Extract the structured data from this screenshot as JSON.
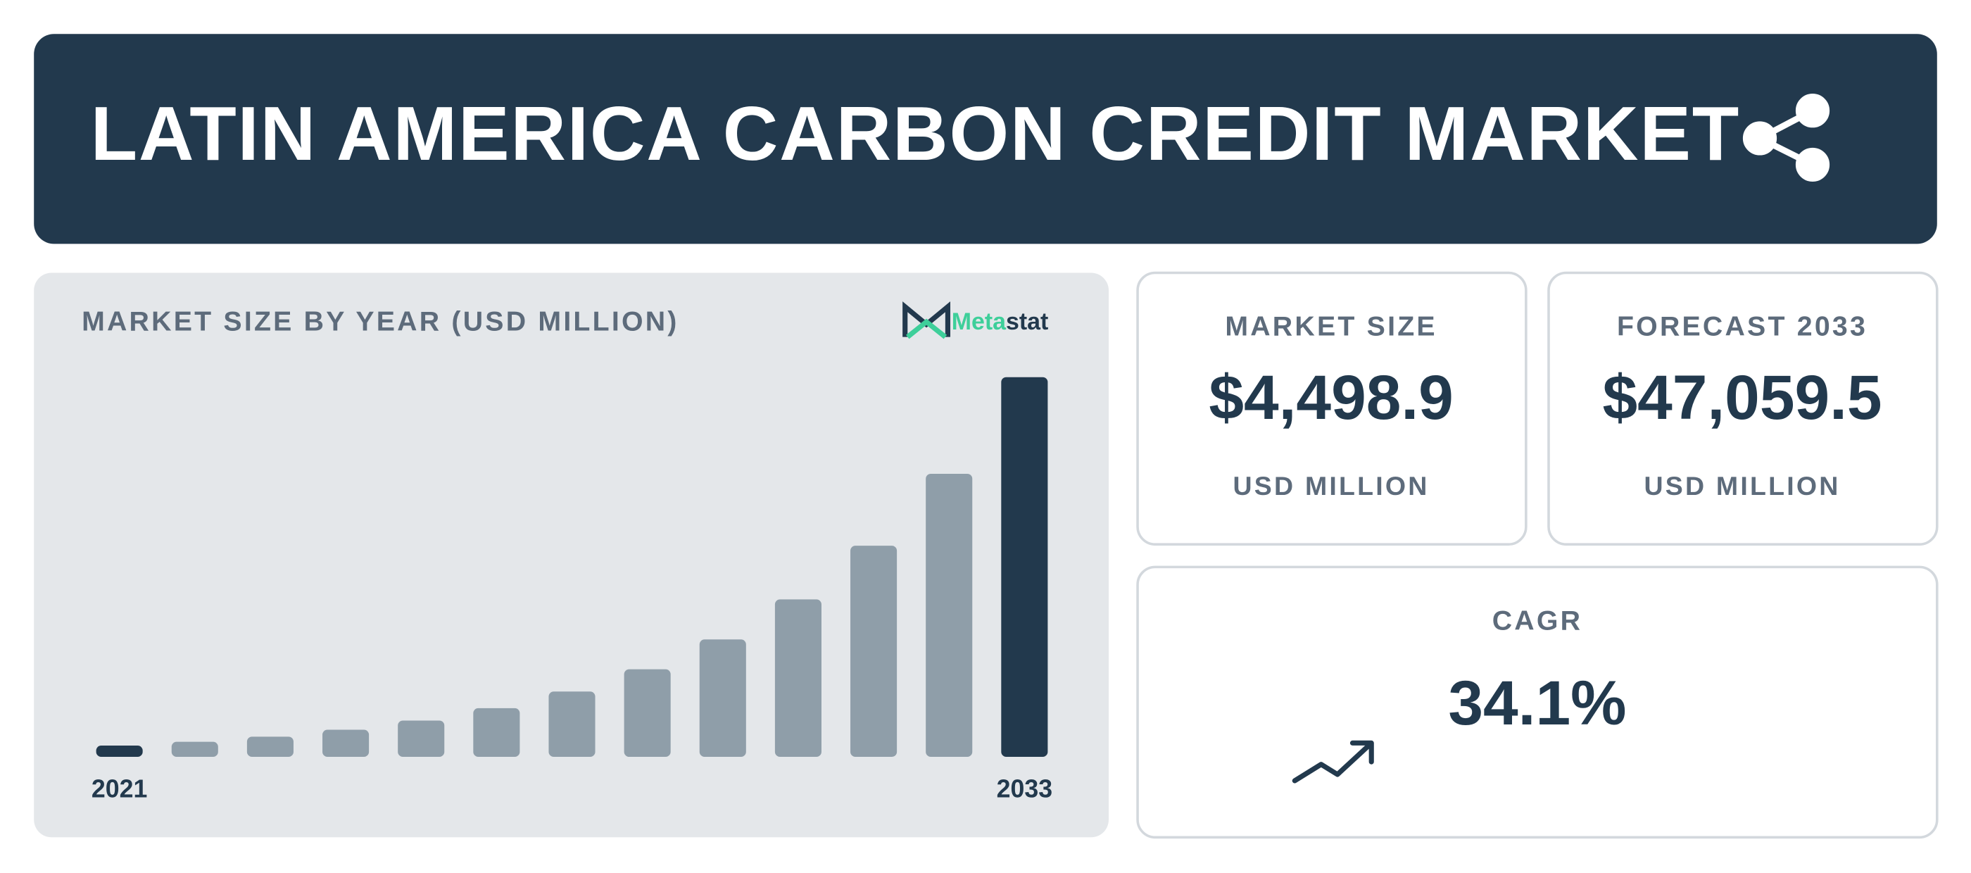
{
  "header": {
    "title": "LATIN AMERICA CARBON CREDIT MARKET"
  },
  "chart_data": {
    "type": "bar",
    "title": "MARKET SIZE BY YEAR (USD MILLION)",
    "categories": [
      "2021",
      null,
      null,
      null,
      null,
      null,
      null,
      null,
      null,
      null,
      null,
      null,
      "2033"
    ],
    "values": [
      1391,
      1866,
      2502,
      3355,
      4498.9,
      6033,
      8090,
      10849,
      14549,
      19510,
      26163,
      35085,
      47059.5
    ],
    "color": "#8f9ea9",
    "highlight_color": "#22394d",
    "highlight": [
      0,
      12
    ]
  },
  "brand": [
    "Meta",
    "stat"
  ],
  "cards": [
    {
      "label": "MARKET SIZE",
      "value": "$4,498.9",
      "unit": "USD MILLION"
    },
    {
      "label": "FORECAST 2033",
      "value": "$47,059.5",
      "unit": "USD MILLION"
    },
    {
      "label": "CAGR",
      "value": "34.1%"
    }
  ]
}
